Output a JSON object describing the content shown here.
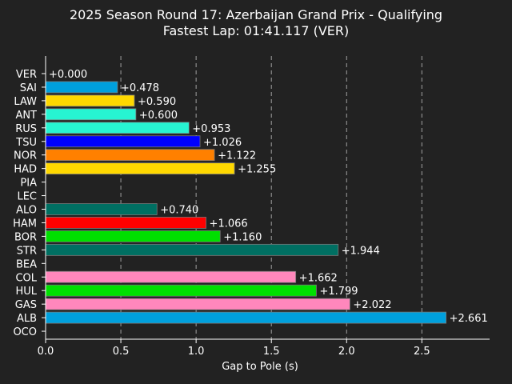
{
  "chart_data": {
    "type": "bar",
    "orientation": "horizontal",
    "title": "2025 Season Round 17: Azerbaijan Grand Prix - Qualifying",
    "subtitle": "Fastest Lap: 01:41.117 (VER)",
    "xlabel": "Gap to Pole (s)",
    "ylabel": "",
    "xlim": [
      0,
      2.95
    ],
    "xticks": [
      0.0,
      0.5,
      1.0,
      1.5,
      2.0,
      2.5
    ],
    "xtick_labels": [
      "0.0",
      "0.5",
      "1.0",
      "1.5",
      "2.0",
      "2.5"
    ],
    "grid": "x",
    "bars": [
      {
        "driver": "VER",
        "value": 0.0,
        "label": "+0.000",
        "color": "#1e41ff"
      },
      {
        "driver": "SAI",
        "value": 0.478,
        "label": "+0.478",
        "color": "#00a0dd"
      },
      {
        "driver": "LAW",
        "value": 0.59,
        "label": "+0.590",
        "color": "#ffd800"
      },
      {
        "driver": "ANT",
        "value": 0.6,
        "label": "+0.600",
        "color": "#27f4d2"
      },
      {
        "driver": "RUS",
        "value": 0.953,
        "label": "+0.953",
        "color": "#27f4d2"
      },
      {
        "driver": "TSU",
        "value": 1.026,
        "label": "+1.026",
        "color": "#0000ff"
      },
      {
        "driver": "NOR",
        "value": 1.122,
        "label": "+1.122",
        "color": "#ff8000"
      },
      {
        "driver": "HAD",
        "value": 1.255,
        "label": "+1.255",
        "color": "#ffd800"
      },
      {
        "driver": "PIA",
        "value": null,
        "label": "",
        "color": "#ff8000"
      },
      {
        "driver": "LEC",
        "value": null,
        "label": "",
        "color": "#dc0000"
      },
      {
        "driver": "ALO",
        "value": 0.74,
        "label": "+0.740",
        "color": "#006f62"
      },
      {
        "driver": "HAM",
        "value": 1.066,
        "label": "+1.066",
        "color": "#ff0000"
      },
      {
        "driver": "BOR",
        "value": 1.16,
        "label": "+1.160",
        "color": "#00e000"
      },
      {
        "driver": "STR",
        "value": 1.944,
        "label": "+1.944",
        "color": "#006f62"
      },
      {
        "driver": "BEA",
        "value": null,
        "label": "",
        "color": "#b6babd"
      },
      {
        "driver": "COL",
        "value": 1.662,
        "label": "+1.662",
        "color": "#ff87bc"
      },
      {
        "driver": "HUL",
        "value": 1.799,
        "label": "+1.799",
        "color": "#00e000"
      },
      {
        "driver": "GAS",
        "value": 2.022,
        "label": "+2.022",
        "color": "#ff87bc"
      },
      {
        "driver": "ALB",
        "value": 2.661,
        "label": "+2.661",
        "color": "#00a0dd"
      },
      {
        "driver": "OCO",
        "value": null,
        "label": "",
        "color": "#b6babd"
      }
    ]
  }
}
